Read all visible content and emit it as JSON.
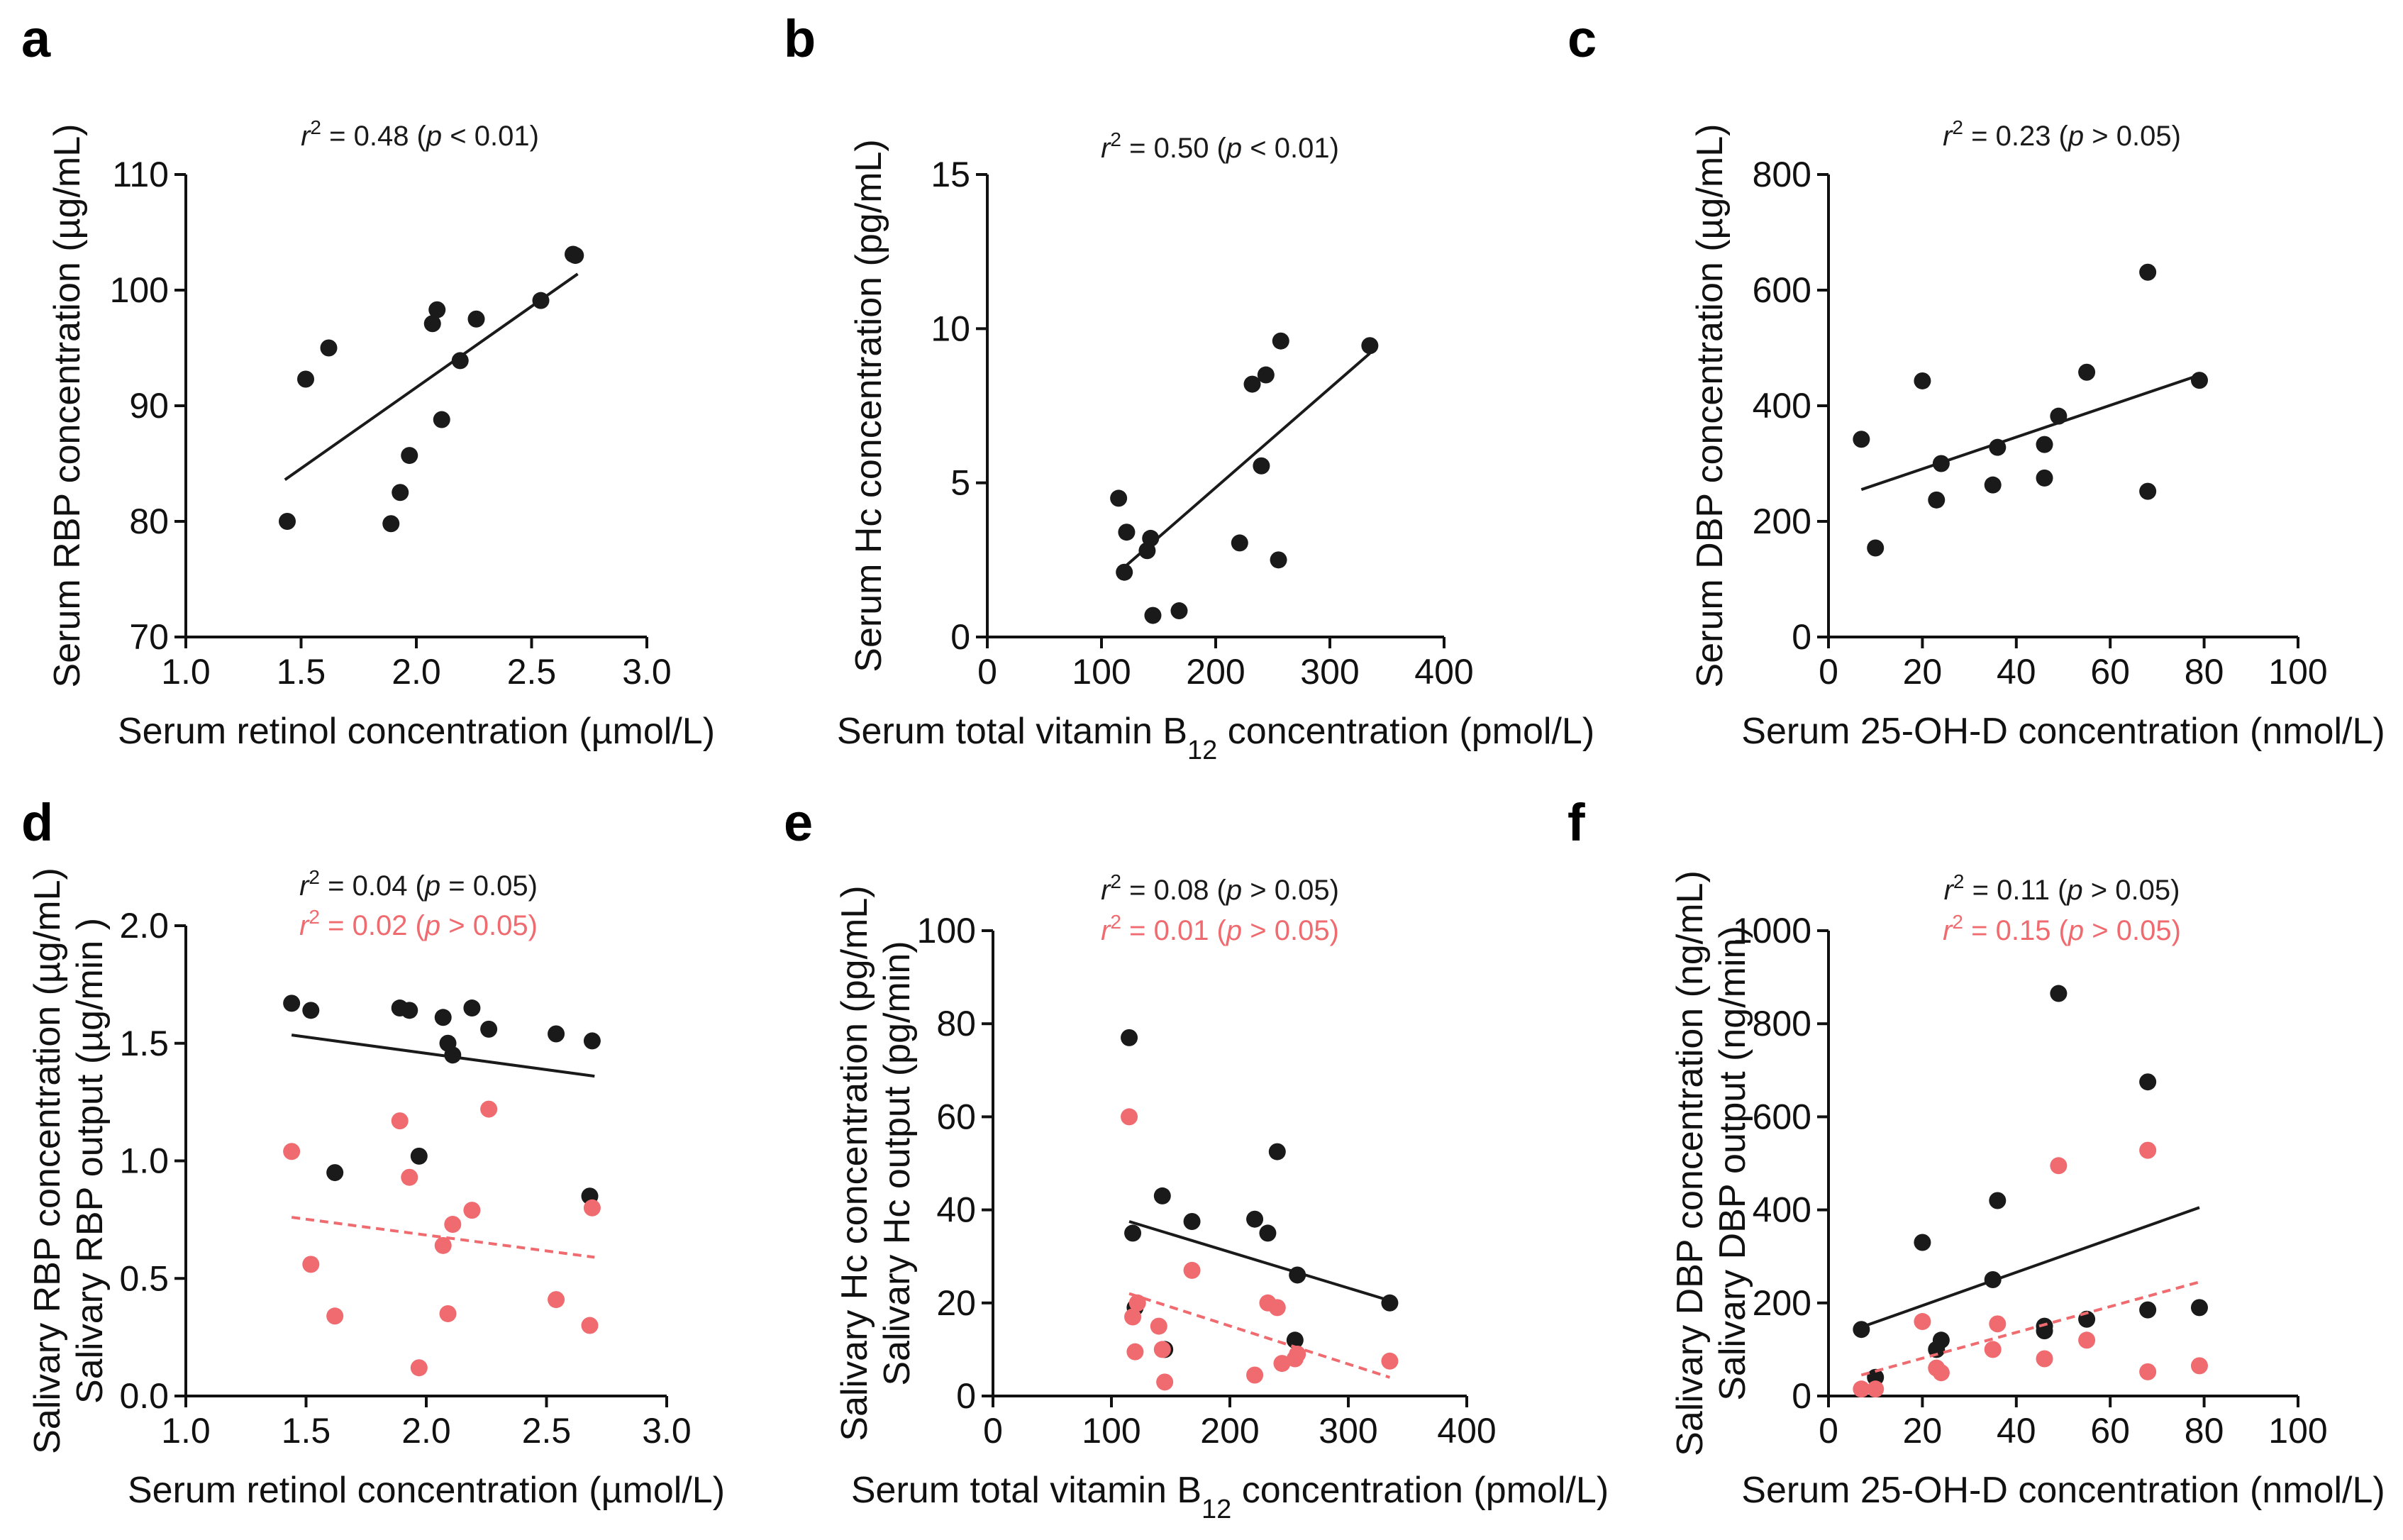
{
  "colors": {
    "black_series": "#1a1a1a",
    "red_series": "#ef6b6f",
    "axis": "#111111"
  },
  "chart_data": [
    {
      "panel": "a",
      "type": "scatter",
      "xlabel": "Serum retinol concentration (µmol/L)",
      "ylabel": "Serum RBP concentration (µg/mL)",
      "xlim": [
        1.0,
        3.0
      ],
      "ylim": [
        70,
        110
      ],
      "xticks": [
        1.0,
        1.5,
        2.0,
        2.5,
        3.0
      ],
      "xtick_labels": [
        "1.0",
        "1.5",
        "2.0",
        "2.5",
        "3.0"
      ],
      "yticks": [
        70,
        80,
        90,
        100,
        110
      ],
      "ytick_labels": [
        "70",
        "80",
        "90",
        "100",
        "110"
      ],
      "series": [
        {
          "name": "Serum RBP",
          "color": "#1a1a1a",
          "x": [
            1.44,
            1.52,
            1.62,
            1.89,
            1.93,
            1.97,
            2.07,
            2.09,
            2.11,
            2.19,
            2.26,
            2.54,
            2.68,
            2.69
          ],
          "y": [
            80.0,
            92.3,
            95.0,
            79.8,
            82.5,
            85.7,
            97.1,
            98.3,
            88.8,
            93.9,
            97.5,
            99.1,
            103.1,
            103.0
          ],
          "fit": {
            "x": [
              1.43,
              2.7
            ],
            "y": [
              83.6,
              101.4
            ],
            "style": "solid"
          },
          "annotation": {
            "r2_text": "r",
            "exp": "2",
            "rest1": " = 0.48 (",
            "p": "p",
            "rest2": " < 0.01)"
          }
        }
      ]
    },
    {
      "panel": "b",
      "type": "scatter",
      "xlabel": "Serum total vitamin B",
      "xlabel_sub": "12",
      "xlabel_tail": " concentration (pmol/L)",
      "ylabel": "Serum Hc concentration (pg/mL)",
      "xlim": [
        0,
        400
      ],
      "ylim": [
        0,
        15
      ],
      "xticks": [
        0,
        100,
        200,
        300,
        400
      ],
      "xtick_labels": [
        "0",
        "100",
        "200",
        "300",
        "400"
      ],
      "yticks": [
        0,
        5,
        10,
        15
      ],
      "ytick_labels": [
        "0",
        "5",
        "10",
        "15"
      ],
      "series": [
        {
          "name": "Serum Hc",
          "color": "#1a1a1a",
          "x": [
            115,
            120,
            122,
            140,
            143,
            145,
            168,
            221,
            232,
            240,
            244,
            255,
            257,
            335
          ],
          "y": [
            4.5,
            2.1,
            3.4,
            2.8,
            3.2,
            0.7,
            0.85,
            3.05,
            8.2,
            5.55,
            8.5,
            2.5,
            9.6,
            9.45
          ],
          "fit": {
            "x": [
              118,
              335
            ],
            "y": [
              2.2,
              9.2
            ],
            "style": "solid"
          },
          "annotation": {
            "r2_text": "r",
            "exp": "2",
            "rest1": " = 0.50 (",
            "p": "p",
            "rest2": " < 0.01)"
          }
        }
      ]
    },
    {
      "panel": "c",
      "type": "scatter",
      "xlabel": "Serum 25-OH-D concentration (nmol/L)",
      "ylabel": "Serum DBP concentration (µg/mL)",
      "xlim": [
        0,
        100
      ],
      "ylim": [
        0,
        800
      ],
      "xticks": [
        0,
        20,
        40,
        60,
        80,
        100
      ],
      "xtick_labels": [
        "0",
        "20",
        "40",
        "60",
        "80",
        "100"
      ],
      "yticks": [
        0,
        200,
        400,
        600,
        800
      ],
      "ytick_labels": [
        "0",
        "200",
        "400",
        "600",
        "800"
      ],
      "series": [
        {
          "name": "Serum DBP",
          "color": "#1a1a1a",
          "x": [
            7,
            10,
            20,
            23,
            24,
            35,
            36,
            46,
            46,
            49,
            55,
            68,
            68,
            79
          ],
          "y": [
            342,
            154,
            443,
            237,
            300,
            263,
            328,
            275,
            333,
            382,
            458,
            631,
            252,
            444
          ],
          "fit": {
            "x": [
              7,
              79
            ],
            "y": [
              255,
              453
            ],
            "style": "solid"
          },
          "annotation": {
            "r2_text": "r",
            "exp": "2",
            "rest1": " = 0.23 (",
            "p": "p",
            "rest2": " > 0.05)"
          }
        }
      ]
    },
    {
      "panel": "d",
      "type": "scatter",
      "xlabel": "Serum retinol concentration (µmol/L)",
      "ylabel": "Salivary RBP concentration (µg/mL)",
      "ylabel2": "Salivary RBP output (µg/min )",
      "xlim": [
        1.0,
        3.0
      ],
      "ylim": [
        0.0,
        2.0
      ],
      "xticks": [
        1.0,
        1.5,
        2.0,
        2.5,
        3.0
      ],
      "xtick_labels": [
        "1.0",
        "1.5",
        "2.0",
        "2.5",
        "3.0"
      ],
      "yticks": [
        0.0,
        0.5,
        1.0,
        1.5,
        2.0
      ],
      "ytick_labels": [
        "0.0",
        "0.5",
        "1.0",
        "1.5",
        "2.0"
      ],
      "series": [
        {
          "name": "Salivary RBP concentration",
          "color": "#1a1a1a",
          "x": [
            1.44,
            1.52,
            1.62,
            1.89,
            1.93,
            1.97,
            2.07,
            2.09,
            2.11,
            2.19,
            2.26,
            2.54,
            2.68,
            2.69
          ],
          "y": [
            1.67,
            1.64,
            0.95,
            1.65,
            1.64,
            1.02,
            1.61,
            1.5,
            1.45,
            1.65,
            1.56,
            1.54,
            0.85,
            1.51
          ],
          "fit": {
            "x": [
              1.44,
              2.7
            ],
            "y": [
              1.535,
              1.36
            ],
            "style": "solid"
          },
          "annotation": {
            "r2_text": "r",
            "exp": "2",
            "rest1": " = 0.04 (",
            "p": "p",
            "rest2": " = 0.05)"
          }
        },
        {
          "name": "Salivary RBP output",
          "color": "#ef6b6f",
          "x": [
            1.44,
            1.52,
            1.62,
            1.89,
            1.93,
            1.97,
            2.07,
            2.09,
            2.11,
            2.19,
            2.26,
            2.54,
            2.68,
            2.69
          ],
          "y": [
            1.04,
            0.56,
            0.34,
            1.17,
            0.93,
            0.12,
            0.64,
            0.35,
            0.73,
            0.79,
            1.22,
            0.41,
            0.3,
            0.8
          ],
          "fit": {
            "x": [
              1.44,
              2.7
            ],
            "y": [
              0.76,
              0.59
            ],
            "style": "dashed"
          },
          "annotation": {
            "r2_text": "r",
            "exp": "2",
            "rest1": " = 0.02 (",
            "p": "p",
            "rest2": " > 0.05)"
          }
        }
      ]
    },
    {
      "panel": "e",
      "type": "scatter",
      "xlabel": "Serum total vitamin B",
      "xlabel_sub": "12",
      "xlabel_tail": " concentration (pmol/L)",
      "ylabel": "Salivary Hc concentration (pg/mL)",
      "ylabel2": "Salivary Hc output (pg/min)",
      "xlim": [
        0,
        400
      ],
      "ylim": [
        0,
        100
      ],
      "xticks": [
        0,
        100,
        200,
        300,
        400
      ],
      "xtick_labels": [
        "0",
        "100",
        "200",
        "300",
        "400"
      ],
      "yticks": [
        0,
        20,
        40,
        60,
        80,
        100
      ],
      "ytick_labels": [
        "0",
        "20",
        "40",
        "60",
        "80",
        "100"
      ],
      "series": [
        {
          "name": "Salivary Hc concentration",
          "color": "#1a1a1a",
          "x": [
            115,
            118,
            120,
            143,
            145,
            168,
            221,
            232,
            240,
            255,
            257,
            335
          ],
          "y": [
            77,
            35,
            19,
            43,
            10,
            37.5,
            38,
            35,
            52.5,
            12,
            26,
            20
          ],
          "fit": {
            "x": [
              115,
              335
            ],
            "y": [
              37.5,
              20.5
            ],
            "style": "solid"
          },
          "annotation": {
            "r2_text": "r",
            "exp": "2",
            "rest1": " = 0.08 (",
            "p": "p",
            "rest2": " > 0.05)"
          }
        },
        {
          "name": "Salivary Hc output",
          "color": "#ef6b6f",
          "x": [
            115,
            118,
            120,
            122,
            140,
            143,
            145,
            168,
            221,
            232,
            240,
            244,
            255,
            257,
            335
          ],
          "y": [
            60,
            17,
            9.5,
            20,
            15,
            10,
            3,
            27,
            4.5,
            20,
            19,
            7,
            8,
            9,
            7.5
          ],
          "fit": {
            "x": [
              115,
              335
            ],
            "y": [
              22,
              4
            ],
            "style": "dashed"
          },
          "annotation": {
            "r2_text": "r",
            "exp": "2",
            "rest1": " = 0.01 (",
            "p": "p",
            "rest2": " > 0.05)"
          }
        }
      ]
    },
    {
      "panel": "f",
      "type": "scatter",
      "xlabel": "Serum 25-OH-D concentration (nmol/L)",
      "ylabel": "Salivary DBP concentration (ng/mL)",
      "ylabel2": "Salivary DBP output (ng/min)",
      "xlim": [
        0,
        100
      ],
      "ylim": [
        0,
        1000
      ],
      "xticks": [
        0,
        20,
        40,
        60,
        80,
        100
      ],
      "xtick_labels": [
        "0",
        "20",
        "40",
        "60",
        "80",
        "100"
      ],
      "yticks": [
        0,
        200,
        400,
        600,
        800,
        1000
      ],
      "ytick_labels": [
        "0",
        "200",
        "400",
        "600",
        "800",
        "1000"
      ],
      "series": [
        {
          "name": "Salivary DBP concentration",
          "color": "#1a1a1a",
          "x": [
            7,
            10,
            20,
            23,
            24,
            35,
            36,
            46,
            46,
            49,
            55,
            68,
            68,
            79
          ],
          "y": [
            143,
            40,
            330,
            100,
            120,
            250,
            420,
            150,
            140,
            865,
            165,
            675,
            185,
            190
          ],
          "fit": {
            "x": [
              7,
              79
            ],
            "y": [
              148,
              405
            ],
            "style": "solid"
          },
          "annotation": {
            "r2_text": "r",
            "exp": "2",
            "rest1": " = 0.11 (",
            "p": "p",
            "rest2": " > 0.05)"
          }
        },
        {
          "name": "Salivary DBP output",
          "color": "#ef6b6f",
          "x": [
            7,
            10,
            20,
            23,
            24,
            35,
            36,
            46,
            49,
            55,
            68,
            68,
            79
          ],
          "y": [
            15,
            15,
            160,
            60,
            50,
            100,
            155,
            80,
            495,
            120,
            528,
            52,
            65
          ],
          "fit": {
            "x": [
              7,
              79
            ],
            "y": [
              45,
              245
            ],
            "style": "dashed"
          },
          "annotation": {
            "r2_text": "r",
            "exp": "2",
            "rest1": " = 0.15 (",
            "p": "p",
            "rest2": " > 0.05)"
          }
        }
      ]
    }
  ]
}
